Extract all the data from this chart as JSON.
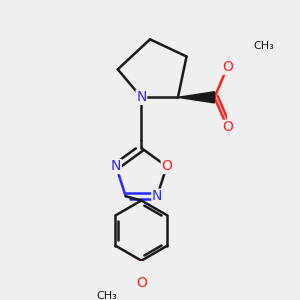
{
  "bg_color": "#efefef",
  "bond_color": "#1a1a1a",
  "n_color": "#2828ff",
  "o_color": "#ff2020",
  "line_width": 1.8,
  "figsize": [
    3.0,
    3.0
  ],
  "dpi": 100,
  "xlim": [
    -1.6,
    2.0
  ],
  "ylim": [
    -3.8,
    2.2
  ]
}
